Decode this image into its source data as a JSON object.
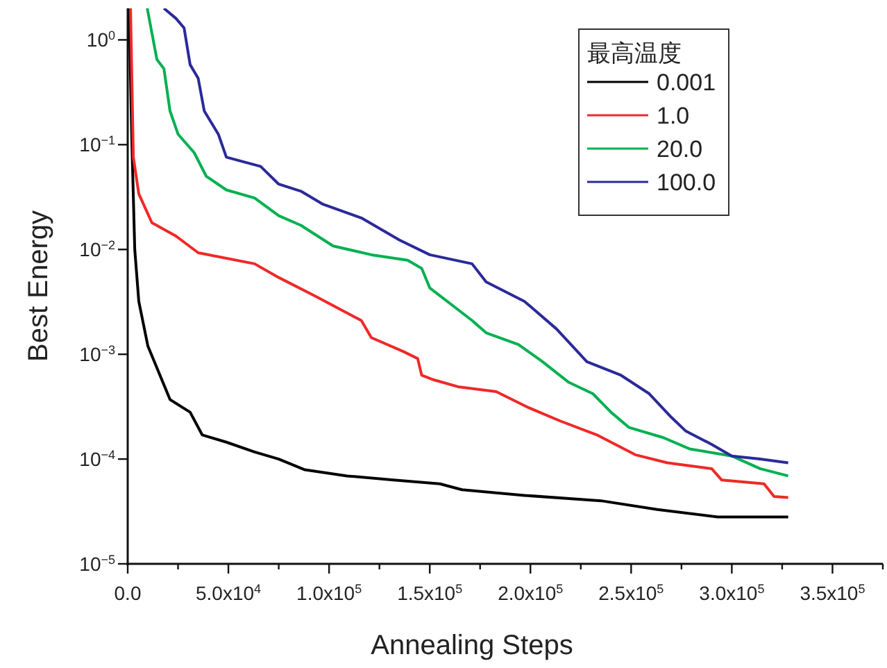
{
  "chart_data": {
    "type": "line",
    "xlabel": "Annealing Steps",
    "ylabel": "Best Energy",
    "legend_title": "最高温度",
    "log": "y",
    "grid": false,
    "legend": "top right",
    "line_style": "solid",
    "marker": "none",
    "xlim": [
      0,
      375000
    ],
    "ylim": [
      1e-05,
      2
    ],
    "xticks": [
      {
        "value": 0,
        "label": "0.0"
      },
      {
        "value": 25000,
        "label": null
      },
      {
        "value": 50000,
        "label": "5.0x10$^{4}$"
      },
      {
        "value": 75000,
        "label": null
      },
      {
        "value": 100000,
        "label": "1.0x10$^{5}$"
      },
      {
        "value": 125000,
        "label": null
      },
      {
        "value": 150000,
        "label": "1.5x10$^{5}$"
      },
      {
        "value": 175000,
        "label": null
      },
      {
        "value": 200000,
        "label": "2.0x10$^{5}$"
      },
      {
        "value": 225000,
        "label": null
      },
      {
        "value": 250000,
        "label": "2.5x10$^{5}$"
      },
      {
        "value": 275000,
        "label": null
      },
      {
        "value": 300000,
        "label": "3.0x10$^{5}$"
      },
      {
        "value": 325000,
        "label": null
      },
      {
        "value": 350000,
        "label": "3.5x10$^{5}$"
      },
      {
        "value": 375000,
        "label": null
      }
    ],
    "yticks": [
      {
        "value": 1e-05,
        "label": "10$^{−5}$"
      },
      {
        "value": 0.0001,
        "label": "10$^{−4}$"
      },
      {
        "value": 0.001,
        "label": "10$^{−3}$"
      },
      {
        "value": 0.01,
        "label": "10$^{−2}$"
      },
      {
        "value": 0.1,
        "label": "10$^{−1}$"
      },
      {
        "value": 1,
        "label": "10$^{0}$"
      }
    ],
    "series": [
      {
        "name": "0.001",
        "color": "#000000",
        "x": [
          700,
          2100,
          3500,
          5500,
          10000,
          21000,
          31000,
          37000,
          49000,
          63000,
          75000,
          88000,
          109000,
          132000,
          155000,
          166000,
          197000,
          235000,
          263000,
          293000,
          328000
        ],
        "values": [
          2,
          0.1,
          0.01,
          0.0032,
          0.0012,
          0.00037,
          0.00028,
          0.00017,
          0.000145,
          0.000117,
          0.0001,
          7.9e-05,
          6.9e-05,
          6.3e-05,
          5.8e-05,
          5.1e-05,
          4.5e-05,
          4e-05,
          3.3e-05,
          2.8e-05,
          2.8e-05
        ]
      },
      {
        "name": "1.0",
        "color": "#f02828",
        "x": [
          1400,
          2800,
          5500,
          12000,
          24000,
          35000,
          63000,
          75000,
          93000,
          116000,
          121000,
          137000,
          144000,
          146000,
          152000,
          164000,
          183000,
          199000,
          215000,
          233000,
          252000,
          268000,
          290000,
          295000,
          316000,
          321000,
          328000
        ],
        "values": [
          2,
          0.076,
          0.034,
          0.018,
          0.0134,
          0.0093,
          0.0073,
          0.0054,
          0.0036,
          0.0021,
          0.00144,
          0.00106,
          0.00091,
          0.00063,
          0.00057,
          0.00049,
          0.00044,
          0.00031,
          0.00023,
          0.00017,
          0.00011,
          9.2e-05,
          8.1e-05,
          6.3e-05,
          5.8e-05,
          4.4e-05,
          4.3e-05
        ]
      },
      {
        "name": "20.0",
        "color": "#00b050",
        "x": [
          9700,
          14500,
          18000,
          21000,
          25000,
          33000,
          39000,
          49000,
          63000,
          75000,
          86000,
          102000,
          121000,
          139000,
          146000,
          150000,
          171000,
          178000,
          194000,
          206000,
          219000,
          231000,
          240000,
          249000,
          266000,
          279000,
          300000,
          314000,
          328000
        ],
        "values": [
          2,
          0.65,
          0.53,
          0.21,
          0.126,
          0.084,
          0.05,
          0.037,
          0.031,
          0.021,
          0.017,
          0.0108,
          0.0089,
          0.0079,
          0.0066,
          0.0043,
          0.0021,
          0.0016,
          0.00124,
          0.00085,
          0.00054,
          0.00042,
          0.00028,
          0.0002,
          0.00016,
          0.000125,
          0.000107,
          8.1e-05,
          6.9e-05
        ]
      },
      {
        "name": "100.0",
        "color": "#2a2a9a",
        "x": [
          18000,
          24000,
          28000,
          31000,
          35000,
          38000,
          45000,
          49000,
          66000,
          75000,
          86000,
          97000,
          116000,
          135000,
          150000,
          171000,
          178000,
          197000,
          213000,
          228000,
          245000,
          259000,
          270000,
          277000,
          290000,
          300000,
          314000,
          328000
        ],
        "values": [
          2,
          1.6,
          1.3,
          0.58,
          0.43,
          0.21,
          0.126,
          0.076,
          0.062,
          0.042,
          0.036,
          0.027,
          0.02,
          0.0123,
          0.0089,
          0.0073,
          0.0049,
          0.0032,
          0.00174,
          0.00085,
          0.00063,
          0.00042,
          0.00025,
          0.000186,
          0.000138,
          0.000107,
          0.0001,
          9.2e-05
        ]
      }
    ]
  }
}
